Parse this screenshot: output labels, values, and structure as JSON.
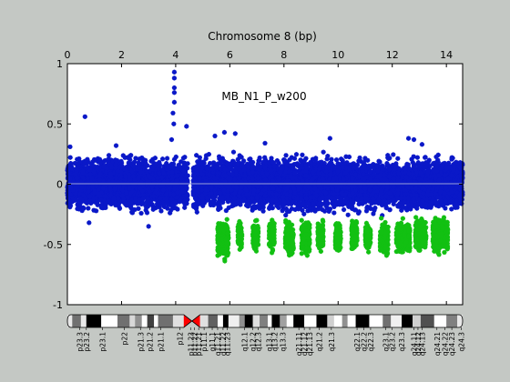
{
  "chart_data": {
    "type": "scatter",
    "title": "Chromosome 8 (bp)",
    "annotation": "MB_N1_P_w200",
    "xlim": [
      0,
      14.6
    ],
    "ylim": [
      -1,
      1
    ],
    "x_ticks": [
      "0",
      "2",
      "4",
      "6",
      "8",
      "10",
      "12",
      "14"
    ],
    "x_tick_values": [
      0,
      2,
      4,
      6,
      8,
      10,
      12,
      14
    ],
    "y_ticks": [
      "1",
      "0.5",
      "0",
      "-0.5",
      "-1"
    ],
    "y_tick_values": [
      1,
      0.5,
      0,
      -0.5,
      -1
    ],
    "x_axis_position": "top",
    "grid": false,
    "baseline": 0,
    "colors": {
      "background": "#c4c8c4",
      "plot_area": "#ffffff",
      "series_main": "#0a18c8",
      "series_loss": "#12c012",
      "baseline": "#9aa0d8"
    },
    "marker": "asterisk",
    "series": [
      {
        "color": "#0a18c8",
        "segments": [
          {
            "x_start": 0.0,
            "x_end": 4.45,
            "band": [
              -0.24,
              0.24
            ]
          },
          {
            "x_start": 4.65,
            "x_end": 14.6,
            "band": [
              -0.24,
              0.24
            ]
          }
        ],
        "outliers": [
          {
            "x": 0.65,
            "y": 0.56
          },
          {
            "x": 3.95,
            "y": 0.93
          },
          {
            "x": 3.95,
            "y": 0.88
          },
          {
            "x": 3.95,
            "y": 0.8
          },
          {
            "x": 3.95,
            "y": 0.76
          },
          {
            "x": 3.95,
            "y": 0.68
          },
          {
            "x": 3.9,
            "y": 0.59
          },
          {
            "x": 3.93,
            "y": 0.5
          },
          {
            "x": 3.85,
            "y": 0.37
          },
          {
            "x": 4.4,
            "y": 0.48
          },
          {
            "x": 5.45,
            "y": 0.4
          },
          {
            "x": 6.2,
            "y": 0.42
          },
          {
            "x": 5.8,
            "y": 0.43
          },
          {
            "x": 7.3,
            "y": 0.34
          },
          {
            "x": 9.7,
            "y": 0.38
          },
          {
            "x": 12.6,
            "y": 0.38
          },
          {
            "x": 13.1,
            "y": 0.33
          },
          {
            "x": 0.1,
            "y": 0.31
          },
          {
            "x": 1.8,
            "y": 0.32
          },
          {
            "x": 3.0,
            "y": -0.35
          },
          {
            "x": 0.8,
            "y": -0.32
          },
          {
            "x": 12.8,
            "y": 0.37
          }
        ]
      },
      {
        "color": "#12c012",
        "segments": [
          {
            "x_start": 5.55,
            "x_end": 5.95,
            "band": [
              -0.64,
              -0.28
            ]
          },
          {
            "x_start": 6.3,
            "x_end": 6.45,
            "band": [
              -0.55,
              -0.3
            ]
          },
          {
            "x_start": 6.85,
            "x_end": 7.05,
            "band": [
              -0.58,
              -0.3
            ]
          },
          {
            "x_start": 7.45,
            "x_end": 7.65,
            "band": [
              -0.57,
              -0.28
            ]
          },
          {
            "x_start": 8.05,
            "x_end": 8.35,
            "band": [
              -0.6,
              -0.3
            ]
          },
          {
            "x_start": 8.65,
            "x_end": 8.95,
            "band": [
              -0.58,
              -0.3
            ]
          },
          {
            "x_start": 9.25,
            "x_end": 9.45,
            "band": [
              -0.55,
              -0.3
            ]
          },
          {
            "x_start": 9.9,
            "x_end": 10.1,
            "band": [
              -0.58,
              -0.3
            ]
          },
          {
            "x_start": 10.5,
            "x_end": 10.7,
            "band": [
              -0.56,
              -0.3
            ]
          },
          {
            "x_start": 11.0,
            "x_end": 11.2,
            "band": [
              -0.57,
              -0.3
            ]
          },
          {
            "x_start": 11.55,
            "x_end": 11.85,
            "band": [
              -0.62,
              -0.3
            ]
          },
          {
            "x_start": 12.15,
            "x_end": 12.65,
            "band": [
              -0.58,
              -0.3
            ]
          },
          {
            "x_start": 12.85,
            "x_end": 13.25,
            "band": [
              -0.56,
              -0.28
            ]
          },
          {
            "x_start": 13.5,
            "x_end": 14.05,
            "band": [
              -0.58,
              -0.28
            ]
          }
        ]
      }
    ],
    "ideogram": {
      "orientation": "horizontal",
      "centromere_at": 4.6,
      "bands": [
        {
          "start": 0.0,
          "end": 0.18,
          "stain": "#e8e8e8"
        },
        {
          "start": 0.18,
          "end": 0.5,
          "stain": "#707070"
        },
        {
          "start": 0.5,
          "end": 0.7,
          "stain": "#e8e8e8"
        },
        {
          "start": 0.7,
          "end": 1.25,
          "stain": "#000000"
        },
        {
          "start": 1.25,
          "end": 1.85,
          "stain": "#ffffff"
        },
        {
          "start": 1.85,
          "end": 2.3,
          "stain": "#707070"
        },
        {
          "start": 2.3,
          "end": 2.5,
          "stain": "#d8d8d8"
        },
        {
          "start": 2.5,
          "end": 2.75,
          "stain": "#909090"
        },
        {
          "start": 2.75,
          "end": 2.95,
          "stain": "#ffffff"
        },
        {
          "start": 2.95,
          "end": 3.2,
          "stain": "#404040"
        },
        {
          "start": 3.2,
          "end": 3.35,
          "stain": "#ffffff"
        },
        {
          "start": 3.35,
          "end": 3.9,
          "stain": "#707070"
        },
        {
          "start": 3.9,
          "end": 4.3,
          "stain": "#e0e0e0"
        },
        {
          "start": 4.3,
          "end": 4.6,
          "stain": "#ff0000"
        },
        {
          "start": 4.6,
          "end": 4.9,
          "stain": "#ff0000"
        },
        {
          "start": 4.9,
          "end": 5.2,
          "stain": "#e0e0e0"
        },
        {
          "start": 5.2,
          "end": 5.55,
          "stain": "#606060"
        },
        {
          "start": 5.55,
          "end": 5.75,
          "stain": "#ffffff"
        },
        {
          "start": 5.75,
          "end": 5.95,
          "stain": "#000000"
        },
        {
          "start": 5.95,
          "end": 6.35,
          "stain": "#f0f0f0"
        },
        {
          "start": 6.35,
          "end": 6.55,
          "stain": "#909090"
        },
        {
          "start": 6.55,
          "end": 6.85,
          "stain": "#000000"
        },
        {
          "start": 6.85,
          "end": 7.1,
          "stain": "#e0e0e0"
        },
        {
          "start": 7.1,
          "end": 7.4,
          "stain": "#808080"
        },
        {
          "start": 7.4,
          "end": 7.55,
          "stain": "#ffffff"
        },
        {
          "start": 7.55,
          "end": 7.85,
          "stain": "#000000"
        },
        {
          "start": 7.85,
          "end": 8.1,
          "stain": "#a0a0a0"
        },
        {
          "start": 8.1,
          "end": 8.35,
          "stain": "#ffffff"
        },
        {
          "start": 8.35,
          "end": 8.75,
          "stain": "#000000"
        },
        {
          "start": 8.75,
          "end": 9.2,
          "stain": "#ffffff"
        },
        {
          "start": 9.2,
          "end": 9.6,
          "stain": "#000000"
        },
        {
          "start": 9.6,
          "end": 9.85,
          "stain": "#d0d0d0"
        },
        {
          "start": 9.85,
          "end": 10.15,
          "stain": "#ffffff"
        },
        {
          "start": 10.15,
          "end": 10.35,
          "stain": "#909090"
        },
        {
          "start": 10.35,
          "end": 10.65,
          "stain": "#ffffff"
        },
        {
          "start": 10.65,
          "end": 11.15,
          "stain": "#000000"
        },
        {
          "start": 11.15,
          "end": 11.65,
          "stain": "#ffffff"
        },
        {
          "start": 11.65,
          "end": 11.95,
          "stain": "#707070"
        },
        {
          "start": 11.95,
          "end": 12.35,
          "stain": "#f0f0f0"
        },
        {
          "start": 12.35,
          "end": 12.75,
          "stain": "#000000"
        },
        {
          "start": 12.75,
          "end": 13.05,
          "stain": "#d0d0d0"
        },
        {
          "start": 13.05,
          "end": 13.55,
          "stain": "#505050"
        },
        {
          "start": 13.55,
          "end": 14.0,
          "stain": "#ffffff"
        },
        {
          "start": 14.0,
          "end": 14.4,
          "stain": "#808080"
        },
        {
          "start": 14.4,
          "end": 14.6,
          "stain": "#e8e8e8"
        }
      ],
      "labels": [
        {
          "x": 0.45,
          "text": "p23.3"
        },
        {
          "x": 0.7,
          "text": "p23.2"
        },
        {
          "x": 1.3,
          "text": "p23.1"
        },
        {
          "x": 2.1,
          "text": "p22"
        },
        {
          "x": 2.7,
          "text": "p21.3"
        },
        {
          "x": 3.05,
          "text": "p21.2"
        },
        {
          "x": 3.45,
          "text": "p21.1"
        },
        {
          "x": 4.15,
          "text": "p12"
        },
        {
          "x": 4.55,
          "text": "p11.23"
        },
        {
          "x": 4.7,
          "text": "p11.22"
        },
        {
          "x": 4.85,
          "text": "p11.21"
        },
        {
          "x": 5.05,
          "text": "p11.1"
        },
        {
          "x": 5.35,
          "text": "q11.1"
        },
        {
          "x": 5.55,
          "text": "q11.21"
        },
        {
          "x": 5.75,
          "text": "q11.22"
        },
        {
          "x": 5.9,
          "text": "q11.23"
        },
        {
          "x": 6.55,
          "text": "q12.1"
        },
        {
          "x": 6.85,
          "text": "q12.2"
        },
        {
          "x": 7.05,
          "text": "q12.3"
        },
        {
          "x": 7.45,
          "text": "q13.1"
        },
        {
          "x": 7.65,
          "text": "q13.2"
        },
        {
          "x": 7.95,
          "text": "q13.3"
        },
        {
          "x": 8.55,
          "text": "q21.11"
        },
        {
          "x": 8.75,
          "text": "q21.12"
        },
        {
          "x": 8.95,
          "text": "q21.13"
        },
        {
          "x": 9.3,
          "text": "q21.2"
        },
        {
          "x": 9.75,
          "text": "q21.3"
        },
        {
          "x": 10.7,
          "text": "q22.1"
        },
        {
          "x": 10.95,
          "text": "q22.2"
        },
        {
          "x": 11.2,
          "text": "q22.3"
        },
        {
          "x": 11.75,
          "text": "q23.1"
        },
        {
          "x": 12.0,
          "text": "q23.2"
        },
        {
          "x": 12.35,
          "text": "q23.3"
        },
        {
          "x": 12.8,
          "text": "q24.11"
        },
        {
          "x": 12.95,
          "text": "q24.12"
        },
        {
          "x": 13.1,
          "text": "q24.13"
        },
        {
          "x": 13.65,
          "text": "q24.21"
        },
        {
          "x": 13.95,
          "text": "q24.22"
        },
        {
          "x": 14.2,
          "text": "q24.23"
        },
        {
          "x": 14.55,
          "text": "q24.3"
        }
      ]
    }
  }
}
